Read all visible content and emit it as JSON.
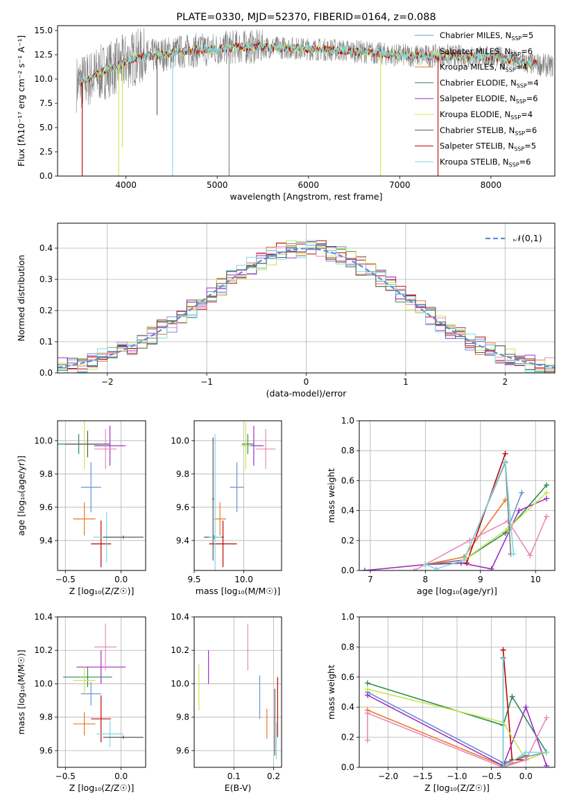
{
  "colors": {
    "grid": "#b0b0b0",
    "gauss": "#5b8bd6",
    "palette": [
      "#6a8fd6",
      "#e8782a",
      "#2e8b57",
      "#c00000",
      "#9b30c0",
      "#7a5535",
      "#e68ab8",
      "#808080",
      "#c8e84a",
      "#7fd8e0"
    ]
  },
  "chart_data": [
    {
      "id": "spectrum",
      "type": "line",
      "title": "PLATE=0330, MJD=52370, FIBERID=0164, z=0.088",
      "xlabel": "wavelength [Angstrom, rest frame]",
      "ylabel": "Flux [fλ10⁻¹⁷ erg cm⁻² s⁻¹ A⁻¹]",
      "xlim": [
        3250,
        8700
      ],
      "ylim": [
        0,
        15.5
      ],
      "xticks": [
        4000,
        5000,
        6000,
        7000,
        8000
      ],
      "yticks": [
        0.0,
        2.5,
        5.0,
        7.5,
        10.0,
        12.5,
        15.0
      ],
      "ytick_labels": [
        "0.0",
        "2.5",
        "5.0",
        "7.5",
        "10.0",
        "12.5",
        "15.0"
      ],
      "grid": false,
      "legend_position": "right",
      "legend": [
        {
          "label": "Chabrier MILES, N",
          "sub": "SSP",
          "tail": "=5",
          "color": "#6a8fd6"
        },
        {
          "label": "Salpeter MILES, N",
          "sub": "SSP",
          "tail": "=6",
          "color": "#e68ab8"
        },
        {
          "label": "Kroupa MILES, N",
          "sub": "SSP",
          "tail": "=4",
          "color": "#e8782a"
        },
        {
          "label": "Chabrier ELODIE, N",
          "sub": "SSP",
          "tail": "=4",
          "color": "#2e8b57"
        },
        {
          "label": "Salpeter ELODIE, N",
          "sub": "SSP",
          "tail": "=6",
          "color": "#9b30c0"
        },
        {
          "label": "Kroupa ELODIE, N",
          "sub": "SSP",
          "tail": "=4",
          "color": "#c8e84a"
        },
        {
          "label": "Chabrier STELIB, N",
          "sub": "SSP",
          "tail": "=6",
          "color": "#555555"
        },
        {
          "label": "Salpeter STELIB, N",
          "sub": "SSP",
          "tail": "=5",
          "color": "#c00000"
        },
        {
          "label": "Kroupa STELIB, N",
          "sub": "SSP",
          "tail": "=6",
          "color": "#7fd8e0"
        }
      ],
      "continuum": {
        "x": [
          3450,
          3550,
          3700,
          3800,
          3900,
          4000,
          4100,
          4300,
          4500,
          4800,
          5000,
          5200,
          5500,
          5800,
          6000,
          6300,
          6600,
          6900,
          7200,
          7500,
          7800,
          8100,
          8400,
          8700
        ],
        "y": [
          9.5,
          9.8,
          10.5,
          11.0,
          11.3,
          11.8,
          12.2,
          12.4,
          12.7,
          13.0,
          13.1,
          13.3,
          13.3,
          13.2,
          13.1,
          13.0,
          12.8,
          12.5,
          12.4,
          12.4,
          12.3,
          12.2,
          11.6,
          11.3
        ]
      },
      "absorption_lines": [
        {
          "x": 3520,
          "y": 0.0,
          "color": "#c00000"
        },
        {
          "x": 3920,
          "y": 0.0,
          "color": "#c8e84a"
        },
        {
          "x": 3960,
          "y": 3.0,
          "color": "#c8e84a"
        },
        {
          "x": 4340,
          "y": 6.3,
          "color": "#555555"
        },
        {
          "x": 4510,
          "y": 0.0,
          "color": "#7fd8e0"
        },
        {
          "x": 5130,
          "y": 0.0,
          "color": "#808080"
        },
        {
          "x": 6790,
          "y": 0.0,
          "color": "#c8e84a"
        },
        {
          "x": 7420,
          "y": 0.0,
          "color": "#c00000"
        }
      ]
    },
    {
      "id": "residuals",
      "type": "histogram",
      "xlabel": "(data-model)/error",
      "ylabel": "Normed distribution",
      "xlim": [
        -2.5,
        2.5
      ],
      "ylim": [
        0,
        0.48
      ],
      "xticks": [
        -2,
        -1,
        0,
        1,
        2
      ],
      "xtick_labels": [
        "−2",
        "−1",
        "0",
        "1",
        "2"
      ],
      "yticks": [
        0.0,
        0.1,
        0.2,
        0.3,
        0.4
      ],
      "ytick_labels": [
        "0.0",
        "0.1",
        "0.2",
        "0.3",
        "0.4"
      ],
      "grid": true,
      "legend_position": "top-right",
      "gauss_label": "𝒩(0,1)",
      "bin_width": 0.1,
      "series_colors": [
        "#6a8fd6",
        "#e8782a",
        "#2e8b57",
        "#c00000",
        "#9b30c0",
        "#c8e84a",
        "#e68ab8",
        "#7fd8e0",
        "#555555"
      ]
    },
    {
      "id": "age-vs-Z",
      "type": "errorbar",
      "xlabel": "Z [log₁₀(Z/Z☉)]",
      "ylabel": "age  [log₁₀(age/yr)]",
      "xlim": [
        -0.57,
        0.22
      ],
      "ylim": [
        9.22,
        10.12
      ],
      "xticks": [
        -0.5,
        0.0
      ],
      "xtick_labels": [
        "−0.5",
        "0.0"
      ],
      "yticks": [
        9.4,
        9.6,
        9.8,
        10.0
      ],
      "ytick_labels": [
        "9.4",
        "9.6",
        "9.8",
        "10.0"
      ],
      "grid": true,
      "points": [
        {
          "x": -0.27,
          "xerr": 0.09,
          "y": 9.72,
          "yerr": 0.15,
          "color": "#6a8fd6"
        },
        {
          "x": -0.33,
          "xerr": 0.1,
          "y": 9.53,
          "yerr": 0.1,
          "color": "#e8782a"
        },
        {
          "x": -0.38,
          "xerr": 0.19,
          "y": 9.98,
          "yerr": 0.06,
          "color": "#2e8b57"
        },
        {
          "x": -0.18,
          "xerr": 0.09,
          "y": 9.38,
          "yerr": 0.14,
          "color": "#c00000"
        },
        {
          "x": -0.1,
          "xerr": 0.14,
          "y": 9.97,
          "yerr": 0.12,
          "color": "#9b30c0"
        },
        {
          "x": -0.33,
          "xerr": 0.1,
          "y": 9.98,
          "yerr": 0.15,
          "color": "#c8e84a"
        },
        {
          "x": -0.14,
          "xerr": 0.1,
          "y": 9.95,
          "yerr": 0.12,
          "color": "#e68ab8"
        },
        {
          "x": -0.3,
          "xerr": 0.2,
          "y": 9.98,
          "yerr": 0.08,
          "color": "#555555"
        },
        {
          "x": -0.13,
          "xerr": 0.12,
          "y": 9.42,
          "yerr": 0.15,
          "color": "#7fd8e0"
        },
        {
          "x": 0.02,
          "xerr": 0.18,
          "y": 9.42,
          "yerr": 0.01,
          "color": "#555555"
        }
      ]
    },
    {
      "id": "age-vs-mass",
      "type": "errorbar",
      "xlabel": "mass [log₁₀(M/M☉)]",
      "ylabel": "",
      "xlim": [
        9.5,
        10.38
      ],
      "ylim": [
        9.22,
        10.12
      ],
      "xticks": [
        9.5,
        10.0
      ],
      "xtick_labels": [
        "9.5",
        "10.0"
      ],
      "yticks": [
        9.4,
        9.6,
        9.8,
        10.0
      ],
      "ytick_labels": [
        "9.4",
        "9.6",
        "9.8",
        "10.0"
      ],
      "grid": true,
      "points": [
        {
          "x": 9.93,
          "xerr": 0.07,
          "y": 9.72,
          "yerr": 0.15,
          "color": "#6a8fd6"
        },
        {
          "x": 9.76,
          "xerr": 0.06,
          "y": 9.53,
          "yerr": 0.1,
          "color": "#e8782a"
        },
        {
          "x": 10.04,
          "xerr": 0.06,
          "y": 9.98,
          "yerr": 0.06,
          "color": "#2e8b57"
        },
        {
          "x": 9.79,
          "xerr": 0.14,
          "y": 9.38,
          "yerr": 0.14,
          "color": "#c00000"
        },
        {
          "x": 10.1,
          "xerr": 0.1,
          "y": 9.97,
          "yerr": 0.12,
          "color": "#9b30c0"
        },
        {
          "x": 10.02,
          "xerr": 0.05,
          "y": 9.97,
          "yerr": 0.14,
          "color": "#c8e84a"
        },
        {
          "x": 10.22,
          "xerr": 0.1,
          "y": 9.95,
          "yerr": 0.12,
          "color": "#e68ab8"
        },
        {
          "x": 9.69,
          "xerr": 0.01,
          "y": 9.65,
          "yerr": 0.37,
          "color": "#555555"
        },
        {
          "x": 9.7,
          "xerr": 0.1,
          "y": 9.42,
          "yerr": 0.01,
          "color": "#555555"
        },
        {
          "x": 9.71,
          "xerr": 0.06,
          "y": 9.42,
          "yerr": 0.62,
          "color": "#7fd8e0"
        }
      ]
    },
    {
      "id": "weight-vs-age",
      "type": "line",
      "xlabel": "age  [log₁₀(age/yr)]",
      "ylabel": "mass weight",
      "xlim": [
        6.8,
        10.35
      ],
      "ylim": [
        0.0,
        1.0
      ],
      "xticks": [
        7,
        8,
        9,
        10
      ],
      "xtick_labels": [
        "7",
        "8",
        "9",
        "10"
      ],
      "yticks": [
        0.0,
        0.2,
        0.4,
        0.6,
        0.8,
        1.0
      ],
      "ytick_labels": [
        "0.0",
        "0.2",
        "0.4",
        "0.6",
        "0.8",
        "1.0"
      ],
      "grid": true,
      "series": [
        {
          "x": [
            8.0,
            8.7,
            9.5,
            9.75
          ],
          "y": [
            0.04,
            0.07,
            0.28,
            0.52
          ],
          "color": "#6a8fd6"
        },
        {
          "x": [
            8.0,
            8.7,
            9.45
          ],
          "y": [
            0.04,
            0.09,
            0.47
          ],
          "color": "#e8782a"
        },
        {
          "x": [
            8.0,
            8.7,
            9.45,
            10.2
          ],
          "y": [
            0.04,
            0.07,
            0.25,
            0.57
          ],
          "color": "#2e8b57"
        },
        {
          "x": [
            8.0,
            8.75,
            9.45
          ],
          "y": [
            0.04,
            0.05,
            0.78
          ],
          "color": "#c00000"
        },
        {
          "x": [
            6.9,
            8.0,
            8.65,
            9.2,
            9.7,
            10.2
          ],
          "y": [
            0.0,
            0.04,
            0.05,
            0.01,
            0.4,
            0.48
          ],
          "color": "#9b30c0"
        },
        {
          "x": [
            8.0,
            8.7,
            9.5,
            10.2
          ],
          "y": [
            0.04,
            0.07,
            0.28,
            0.52
          ],
          "color": "#c8e84a"
        },
        {
          "x": [
            7.8,
            8.8,
            9.5,
            9.9,
            10.2
          ],
          "y": [
            0.0,
            0.2,
            0.33,
            0.1,
            0.36
          ],
          "color": "#e68ab8"
        },
        {
          "x": [
            8.0,
            8.7,
            9.45,
            9.55
          ],
          "y": [
            0.04,
            0.07,
            0.72,
            0.11
          ],
          "color": "#808080"
        },
        {
          "x": [
            8.0,
            8.2,
            8.7,
            9.45,
            9.6
          ],
          "y": [
            0.04,
            0.01,
            0.07,
            0.73,
            0.11
          ],
          "color": "#7fd8e0"
        }
      ]
    },
    {
      "id": "mass-vs-Z",
      "type": "errorbar",
      "xlabel": "Z [log₁₀(Z/Z☉)]",
      "ylabel": "mass [log₁₀(M/M☉)]",
      "xlim": [
        -0.57,
        0.22
      ],
      "ylim": [
        9.5,
        10.4
      ],
      "xticks": [
        -0.5,
        0.0
      ],
      "xtick_labels": [
        "−0.5",
        "0.0"
      ],
      "yticks": [
        9.6,
        9.8,
        10.0,
        10.2,
        10.4
      ],
      "ytick_labels": [
        "9.6",
        "9.8",
        "10.0",
        "10.2",
        "10.4"
      ],
      "grid": true,
      "points": [
        {
          "x": -0.27,
          "xerr": 0.09,
          "y": 9.94,
          "yerr": 0.07,
          "color": "#6a8fd6"
        },
        {
          "x": -0.33,
          "xerr": 0.1,
          "y": 9.76,
          "yerr": 0.07,
          "color": "#e8782a"
        },
        {
          "x": -0.3,
          "xerr": 0.22,
          "y": 10.04,
          "yerr": 0.06,
          "color": "#2e8b57"
        },
        {
          "x": -0.18,
          "xerr": 0.09,
          "y": 9.79,
          "yerr": 0.14,
          "color": "#c00000"
        },
        {
          "x": -0.18,
          "xerr": 0.22,
          "y": 10.1,
          "yerr": 0.1,
          "color": "#9b30c0"
        },
        {
          "x": -0.33,
          "xerr": 0.1,
          "y": 10.02,
          "yerr": 0.08,
          "color": "#c8e84a"
        },
        {
          "x": -0.14,
          "xerr": 0.1,
          "y": 10.22,
          "yerr": 0.14,
          "color": "#e68ab8"
        },
        {
          "x": -0.1,
          "xerr": 0.12,
          "y": 9.7,
          "yerr": 0.08,
          "color": "#7fd8e0"
        },
        {
          "x": 0.02,
          "xerr": 0.18,
          "y": 9.68,
          "yerr": 0.01,
          "color": "#555555"
        }
      ]
    },
    {
      "id": "mass-vs-ebv",
      "type": "errorbar",
      "xlabel": "E(B-V)",
      "ylabel": "",
      "xlim": [
        0.0,
        0.22
      ],
      "ylim": [
        9.5,
        10.4
      ],
      "xticks": [
        0.1,
        0.2
      ],
      "xtick_labels": [
        "0.1",
        "0.2"
      ],
      "yticks": [
        9.6,
        9.8,
        10.0,
        10.2,
        10.4
      ],
      "ytick_labels": [
        "9.6",
        "9.8",
        "10.0",
        "10.2",
        "10.4"
      ],
      "grid": true,
      "points": [
        {
          "x": 0.012,
          "xerr": 0.0,
          "y": 9.98,
          "yerr": 0.14,
          "color": "#c8e84a"
        },
        {
          "x": 0.036,
          "xerr": 0.0,
          "y": 10.1,
          "yerr": 0.1,
          "color": "#9b30c0"
        },
        {
          "x": 0.135,
          "xerr": 0.0,
          "y": 10.22,
          "yerr": 0.14,
          "color": "#e68ab8"
        },
        {
          "x": 0.165,
          "xerr": 0.0,
          "y": 9.92,
          "yerr": 0.13,
          "color": "#6a8fd6"
        },
        {
          "x": 0.183,
          "xerr": 0.0,
          "y": 9.76,
          "yerr": 0.09,
          "color": "#e8782a"
        },
        {
          "x": 0.203,
          "xerr": 0.0,
          "y": 9.77,
          "yerr": 0.2,
          "color": "#555555"
        },
        {
          "x": 0.207,
          "xerr": 0.0,
          "y": 9.66,
          "yerr": 0.11,
          "color": "#7fd8e0"
        },
        {
          "x": 0.21,
          "xerr": 0.0,
          "y": 9.86,
          "yerr": 0.18,
          "color": "#c00000"
        }
      ]
    },
    {
      "id": "weight-vs-Z",
      "type": "line",
      "xlabel": "Z [log₁₀(Z/Z☉)]",
      "ylabel": "mass weight",
      "xlim": [
        -2.42,
        0.42
      ],
      "ylim": [
        0.0,
        1.0
      ],
      "xticks": [
        -2.0,
        -1.5,
        -1.0,
        -0.5,
        0.0
      ],
      "xtick_labels": [
        "−2.0",
        "−1.5",
        "−1.0",
        "−0.5",
        "0.0"
      ],
      "yticks": [
        0.0,
        0.2,
        0.4,
        0.6,
        0.8,
        1.0
      ],
      "ytick_labels": [
        "0.0",
        "0.2",
        "0.4",
        "0.6",
        "0.8",
        "1.0"
      ],
      "grid": true,
      "series": [
        {
          "x": [
            -2.3,
            -0.33,
            0.0,
            0.3
          ],
          "y": [
            0.5,
            0.03,
            0.07,
            0.1
          ],
          "color": "#6a8fd6"
        },
        {
          "x": [
            -2.3,
            -0.33,
            0.0,
            0.3
          ],
          "y": [
            0.38,
            0.01,
            0.05,
            0.1
          ],
          "color": "#e8782a"
        },
        {
          "x": [
            -2.3,
            -0.33,
            -0.2,
            0.3
          ],
          "y": [
            0.56,
            0.28,
            0.47,
            0.1
          ],
          "color": "#2e8b57"
        },
        {
          "x": [
            -0.33,
            -0.2,
            0.0
          ],
          "y": [
            0.78,
            0.05,
            0.05
          ],
          "color": "#c00000"
        },
        {
          "x": [
            -2.3,
            -0.33,
            0.0,
            0.3
          ],
          "y": [
            0.48,
            0.01,
            0.4,
            0.01
          ],
          "color": "#9b30c0"
        },
        {
          "x": [
            -2.3,
            -0.33,
            0.0,
            0.3
          ],
          "y": [
            0.52,
            0.3,
            0.05,
            0.1
          ],
          "color": "#c8e84a"
        },
        {
          "x": [
            -2.3,
            -2.3,
            -0.33,
            0.0,
            0.3
          ],
          "y": [
            0.18,
            0.36,
            0.0,
            0.05,
            0.33
          ],
          "color": "#e68ab8"
        },
        {
          "x": [
            -0.33,
            -0.33,
            0.0
          ],
          "y": [
            0.73,
            0.02,
            0.08
          ],
          "color": "#808080"
        },
        {
          "x": [
            -0.33,
            -0.33,
            0.0,
            0.3
          ],
          "y": [
            0.72,
            0.0,
            0.1,
            0.1
          ],
          "color": "#7fd8e0"
        }
      ]
    }
  ]
}
